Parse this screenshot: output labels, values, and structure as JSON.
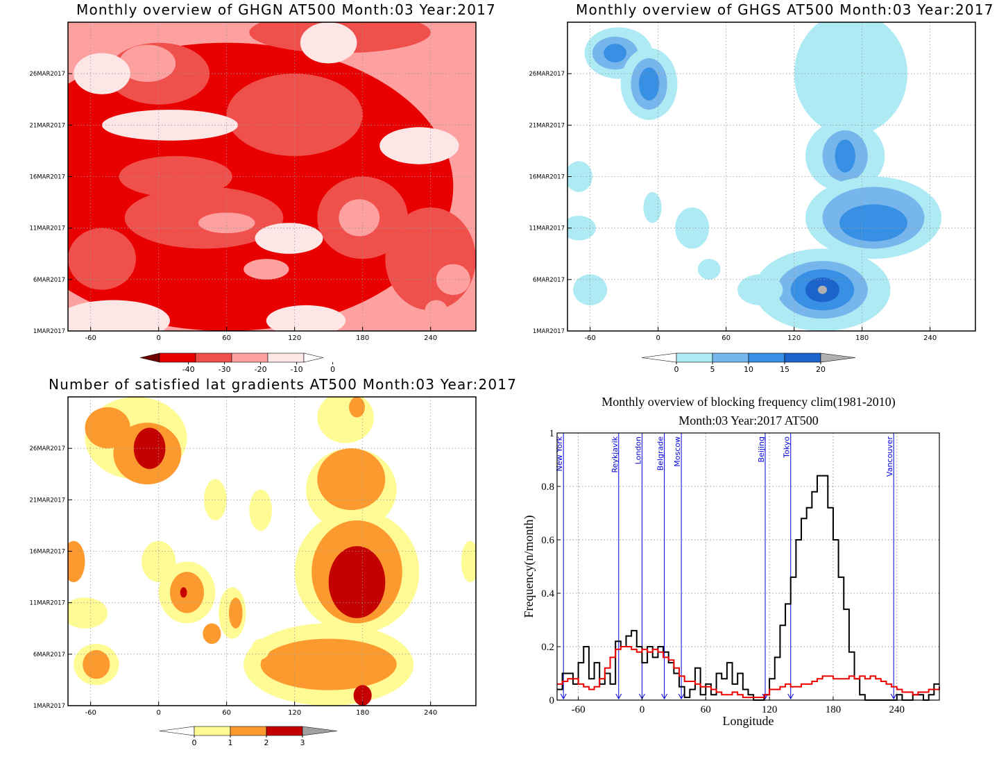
{
  "colors": {
    "red": [
      "#6e0000",
      "#e80000",
      "#f0504c",
      "#fca0a0",
      "#fde6e6"
    ],
    "blue": [
      "#aeeaf4",
      "#76b6ec",
      "#3890e4",
      "#1c64cc",
      "#b0b0b0"
    ],
    "yellow_orange": [
      "#fffb94",
      "#fc9a30",
      "#c40000",
      "#a0a0a0"
    ],
    "line_black": "#000000",
    "line_red": "#ee0000",
    "city_line": "#0000dd"
  },
  "chart_data": [
    {
      "type": "heatmap",
      "title": "Monthly overview of GHGN AT500 Month:03 Year:2017",
      "x_ticks": [
        "-60",
        "0",
        "60",
        "120",
        "180",
        "240"
      ],
      "x_tick_values": [
        -60,
        0,
        60,
        120,
        180,
        240
      ],
      "xlim": [
        -80,
        280
      ],
      "y_ticks": [
        "1MAR2017",
        "6MAR2017",
        "11MAR2017",
        "16MAR2017",
        "21MAR2017",
        "26MAR2017"
      ],
      "y_tick_values": [
        1,
        6,
        11,
        16,
        21,
        26
      ],
      "ylim": [
        1,
        31
      ],
      "colorbar": {
        "labels": [
          "-40",
          "-30",
          "-20",
          "-10",
          "0"
        ]
      },
      "blobs": [
        {
          "x": 60,
          "y": 15,
          "rx": 200,
          "ry": 14,
          "level": 3
        },
        {
          "x": 0,
          "y": 26,
          "rx": 45,
          "ry": 3,
          "level": 2
        },
        {
          "x": -10,
          "y": 27,
          "rx": 25,
          "ry": 1.8,
          "level": 1
        },
        {
          "x": 120,
          "y": 22,
          "rx": 60,
          "ry": 4,
          "level": 2
        },
        {
          "x": 180,
          "y": 12,
          "rx": 40,
          "ry": 4,
          "level": 2
        },
        {
          "x": 177,
          "y": 12,
          "rx": 18,
          "ry": 1.8,
          "level": 1
        },
        {
          "x": 40,
          "y": 12,
          "rx": 70,
          "ry": 3,
          "level": 2
        },
        {
          "x": 60,
          "y": 11.5,
          "rx": 25,
          "ry": 1,
          "level": 1
        },
        {
          "x": 15,
          "y": 16,
          "rx": 50,
          "ry": 2,
          "level": 2
        },
        {
          "x": 240,
          "y": 8,
          "rx": 40,
          "ry": 5,
          "level": 2
        },
        {
          "x": 95,
          "y": 7,
          "rx": 20,
          "ry": 1,
          "level": 1
        },
        {
          "x": 260,
          "y": 6,
          "rx": 15,
          "ry": 1.5,
          "level": 1
        },
        {
          "x": -50,
          "y": 8,
          "rx": 30,
          "ry": 3,
          "level": 2
        },
        {
          "x": 160,
          "y": 30,
          "rx": 80,
          "ry": 2,
          "level": 2
        },
        {
          "x": 245,
          "y": 3,
          "rx": 10,
          "ry": 1,
          "level": 1
        },
        {
          "x": -50,
          "y": 26,
          "rx": 25,
          "ry": 2,
          "level": 4
        },
        {
          "x": 150,
          "y": 29,
          "rx": 25,
          "ry": 2,
          "level": 4
        },
        {
          "x": -40,
          "y": 2,
          "rx": 50,
          "ry": 2,
          "level": 4
        },
        {
          "x": 115,
          "y": 10,
          "rx": 30,
          "ry": 1.5,
          "level": 4
        },
        {
          "x": 10,
          "y": 21,
          "rx": 60,
          "ry": 1.5,
          "level": 4
        },
        {
          "x": 230,
          "y": 19,
          "rx": 35,
          "ry": 1.8,
          "level": 4
        },
        {
          "x": 130,
          "y": 2,
          "rx": 35,
          "ry": 1.5,
          "level": 4
        }
      ]
    },
    {
      "type": "heatmap",
      "title": "Monthly overview of GHGS AT500 Month:03 Year:2017",
      "x_ticks": [
        "-60",
        "0",
        "60",
        "120",
        "180",
        "240"
      ],
      "x_tick_values": [
        -60,
        0,
        60,
        120,
        180,
        240
      ],
      "xlim": [
        -80,
        280
      ],
      "y_ticks": [
        "1MAR2017",
        "6MAR2017",
        "11MAR2017",
        "16MAR2017",
        "21MAR2017",
        "26MAR2017"
      ],
      "y_tick_values": [
        1,
        6,
        11,
        16,
        21,
        26
      ],
      "ylim": [
        1,
        31
      ],
      "colorbar": {
        "labels": [
          "0",
          "5",
          "10",
          "15",
          "20"
        ]
      },
      "blobs": [
        {
          "x": -35,
          "y": 28,
          "rx": 30,
          "ry": 2.5,
          "level": 0
        },
        {
          "x": -38,
          "y": 28,
          "rx": 20,
          "ry": 1.6,
          "level": 1
        },
        {
          "x": -38,
          "y": 28,
          "rx": 10,
          "ry": 0.9,
          "level": 2
        },
        {
          "x": -8,
          "y": 25,
          "rx": 25,
          "ry": 3.5,
          "level": 0
        },
        {
          "x": -8,
          "y": 25,
          "rx": 16,
          "ry": 2.5,
          "level": 1
        },
        {
          "x": -8,
          "y": 25,
          "rx": 9,
          "ry": 1.6,
          "level": 2
        },
        {
          "x": 170,
          "y": 26,
          "rx": 50,
          "ry": 6,
          "level": 0
        },
        {
          "x": 165,
          "y": 18,
          "rx": 35,
          "ry": 3.5,
          "level": 0
        },
        {
          "x": 165,
          "y": 18,
          "rx": 20,
          "ry": 2.5,
          "level": 1
        },
        {
          "x": 165,
          "y": 18,
          "rx": 9,
          "ry": 1.6,
          "level": 2
        },
        {
          "x": 190,
          "y": 12,
          "rx": 60,
          "ry": 4,
          "level": 0
        },
        {
          "x": 190,
          "y": 12,
          "rx": 45,
          "ry": 3,
          "level": 1
        },
        {
          "x": 190,
          "y": 11.5,
          "rx": 30,
          "ry": 1.8,
          "level": 2
        },
        {
          "x": 145,
          "y": 5,
          "rx": 60,
          "ry": 4,
          "level": 0
        },
        {
          "x": 145,
          "y": 5,
          "rx": 40,
          "ry": 2.8,
          "level": 1
        },
        {
          "x": 145,
          "y": 5,
          "rx": 28,
          "ry": 2,
          "level": 2
        },
        {
          "x": 145,
          "y": 5,
          "rx": 15,
          "ry": 1.2,
          "level": 3
        },
        {
          "x": 145,
          "y": 5,
          "rx": 4,
          "ry": 0.4,
          "level": 4
        },
        {
          "x": -70,
          "y": 16,
          "rx": 12,
          "ry": 1.5,
          "level": 0
        },
        {
          "x": -70,
          "y": 11,
          "rx": 15,
          "ry": 1.2,
          "level": 0
        },
        {
          "x": -60,
          "y": 5,
          "rx": 15,
          "ry": 1.5,
          "level": 0
        },
        {
          "x": -5,
          "y": 13,
          "rx": 8,
          "ry": 1.5,
          "level": 0
        },
        {
          "x": 30,
          "y": 11,
          "rx": 15,
          "ry": 2,
          "level": 0
        },
        {
          "x": 45,
          "y": 7,
          "rx": 10,
          "ry": 1,
          "level": 0
        },
        {
          "x": 90,
          "y": 5,
          "rx": 20,
          "ry": 1.5,
          "level": 0
        },
        {
          "x": 165,
          "y": 29,
          "rx": 20,
          "ry": 2,
          "level": 0
        }
      ]
    },
    {
      "type": "heatmap",
      "title": "Number of satisfied lat gradients AT500 Month:03 Year:2017",
      "x_ticks": [
        "-60",
        "0",
        "60",
        "120",
        "180",
        "240"
      ],
      "x_tick_values": [
        -60,
        0,
        60,
        120,
        180,
        240
      ],
      "xlim": [
        -80,
        280
      ],
      "y_ticks": [
        "1MAR2017",
        "6MAR2017",
        "11MAR2017",
        "16MAR2017",
        "21MAR2017",
        "26MAR2017"
      ],
      "y_tick_values": [
        1,
        6,
        11,
        16,
        21,
        26
      ],
      "ylim": [
        1,
        31
      ],
      "colorbar": {
        "labels": [
          "0",
          "1",
          "2",
          "3"
        ]
      },
      "blobs": [
        {
          "x": -20,
          "y": 27,
          "rx": 45,
          "ry": 4,
          "level": 0
        },
        {
          "x": -10,
          "y": 25.5,
          "rx": 30,
          "ry": 3,
          "level": 1
        },
        {
          "x": -8,
          "y": 26,
          "rx": 14,
          "ry": 2,
          "level": 2
        },
        {
          "x": -45,
          "y": 28,
          "rx": 20,
          "ry": 2,
          "level": 1
        },
        {
          "x": 170,
          "y": 22,
          "rx": 40,
          "ry": 4,
          "level": 0
        },
        {
          "x": 170,
          "y": 23,
          "rx": 30,
          "ry": 3,
          "level": 1
        },
        {
          "x": 175,
          "y": 14,
          "rx": 55,
          "ry": 6,
          "level": 0
        },
        {
          "x": 175,
          "y": 14,
          "rx": 40,
          "ry": 5,
          "level": 1
        },
        {
          "x": 175,
          "y": 13,
          "rx": 25,
          "ry": 3.5,
          "level": 2
        },
        {
          "x": 150,
          "y": 5,
          "rx": 75,
          "ry": 4,
          "level": 0
        },
        {
          "x": 150,
          "y": 5,
          "rx": 60,
          "ry": 2.5,
          "level": 1
        },
        {
          "x": 180,
          "y": 2,
          "rx": 8,
          "ry": 1,
          "level": 2
        },
        {
          "x": -55,
          "y": 5,
          "rx": 20,
          "ry": 2,
          "level": 0
        },
        {
          "x": -55,
          "y": 5,
          "rx": 12,
          "ry": 1.4,
          "level": 1
        },
        {
          "x": 25,
          "y": 12,
          "rx": 25,
          "ry": 3,
          "level": 0
        },
        {
          "x": 25,
          "y": 12,
          "rx": 15,
          "ry": 2,
          "level": 1
        },
        {
          "x": 22,
          "y": 12,
          "rx": 3,
          "ry": 0.5,
          "level": 2
        },
        {
          "x": -75,
          "y": 15,
          "rx": 10,
          "ry": 2,
          "level": 1
        },
        {
          "x": -65,
          "y": 10,
          "rx": 20,
          "ry": 1.5,
          "level": 0
        },
        {
          "x": 0,
          "y": 15,
          "rx": 15,
          "ry": 2,
          "level": 0
        },
        {
          "x": 65,
          "y": 10,
          "rx": 12,
          "ry": 2.5,
          "level": 0
        },
        {
          "x": 68,
          "y": 10,
          "rx": 6,
          "ry": 1.5,
          "level": 1
        },
        {
          "x": 47,
          "y": 8,
          "rx": 8,
          "ry": 1,
          "level": 1
        },
        {
          "x": 90,
          "y": 6.5,
          "rx": 8,
          "ry": 1,
          "level": 0
        },
        {
          "x": 50,
          "y": 21,
          "rx": 10,
          "ry": 2,
          "level": 0
        },
        {
          "x": 90,
          "y": 20,
          "rx": 10,
          "ry": 2,
          "level": 0
        },
        {
          "x": 275,
          "y": 15,
          "rx": 8,
          "ry": 2,
          "level": 0
        },
        {
          "x": 165,
          "y": 29,
          "rx": 25,
          "ry": 2.5,
          "level": 0
        },
        {
          "x": 175,
          "y": 30,
          "rx": 7,
          "ry": 1,
          "level": 1
        }
      ]
    },
    {
      "type": "line",
      "title": "Monthly overview of blocking frequency clim(1981-2010)",
      "subtitle": "Month:03 Year:2017  AT500",
      "xlabel": "Longitude",
      "ylabel": "Frequency(n/month)",
      "xlim": [
        -80,
        280
      ],
      "ylim": [
        0,
        1
      ],
      "x_ticks": [
        "-60",
        "0",
        "60",
        "120",
        "180",
        "240"
      ],
      "x_tick_values": [
        -60,
        0,
        60,
        120,
        180,
        240
      ],
      "y_ticks": [
        "0",
        "0.2",
        "0.4",
        "0.6",
        "0.8",
        "1"
      ],
      "y_tick_values": [
        0,
        0.2,
        0.4,
        0.6,
        0.8,
        1
      ],
      "grid": true,
      "cities": [
        {
          "name": "New York",
          "lon": -74
        },
        {
          "name": "Reykjavik",
          "lon": -22
        },
        {
          "name": "London",
          "lon": 0
        },
        {
          "name": "Belgrade",
          "lon": 21
        },
        {
          "name": "Moscow",
          "lon": 37
        },
        {
          "name": "Beijing",
          "lon": 116
        },
        {
          "name": "Tokyo",
          "lon": 140
        },
        {
          "name": "Vancouver",
          "lon": 237
        }
      ],
      "series": [
        {
          "color": "#000000",
          "x": [
            -80,
            -75,
            -70,
            -65,
            -60,
            -55,
            -50,
            -45,
            -40,
            -35,
            -30,
            -25,
            -20,
            -15,
            -10,
            -5,
            0,
            5,
            10,
            15,
            20,
            25,
            30,
            35,
            40,
            45,
            50,
            55,
            60,
            65,
            70,
            75,
            80,
            85,
            90,
            95,
            100,
            105,
            110,
            115,
            120,
            125,
            130,
            135,
            140,
            145,
            150,
            155,
            160,
            165,
            170,
            175,
            180,
            185,
            190,
            195,
            200,
            205,
            210,
            215,
            220,
            225,
            230,
            235,
            240,
            245,
            250,
            255,
            260,
            265,
            270,
            275,
            280
          ],
          "values": [
            0.04,
            0.1,
            0.1,
            0.06,
            0.14,
            0.2,
            0.08,
            0.14,
            0.06,
            0.1,
            0.06,
            0.22,
            0.2,
            0.24,
            0.26,
            0.2,
            0.14,
            0.2,
            0.16,
            0.2,
            0.18,
            0.14,
            0.1,
            0.05,
            0.01,
            0.04,
            0.12,
            0.02,
            0.06,
            0.02,
            0.1,
            0.08,
            0.14,
            0.06,
            0.1,
            0.04,
            0.02,
            0.0,
            0.0,
            0.02,
            0.08,
            0.16,
            0.28,
            0.36,
            0.46,
            0.6,
            0.68,
            0.72,
            0.78,
            0.84,
            0.84,
            0.72,
            0.6,
            0.46,
            0.34,
            0.18,
            0.08,
            0.02,
            0.0,
            0.0,
            0.0,
            0.0,
            0.0,
            0.0,
            0.02,
            0.0,
            0.0,
            0.02,
            0.02,
            0.0,
            0.02,
            0.06,
            0.06
          ]
        },
        {
          "color": "#ee0000",
          "x": [
            -80,
            -75,
            -70,
            -65,
            -60,
            -55,
            -50,
            -45,
            -40,
            -35,
            -30,
            -25,
            -20,
            -15,
            -10,
            -5,
            0,
            5,
            10,
            15,
            20,
            25,
            30,
            35,
            40,
            45,
            50,
            55,
            60,
            65,
            70,
            75,
            80,
            85,
            90,
            95,
            100,
            105,
            110,
            115,
            120,
            125,
            130,
            135,
            140,
            145,
            150,
            155,
            160,
            165,
            170,
            175,
            180,
            185,
            190,
            195,
            200,
            205,
            210,
            215,
            220,
            225,
            230,
            235,
            240,
            245,
            250,
            255,
            260,
            265,
            270,
            275,
            280
          ],
          "values": [
            0.06,
            0.07,
            0.08,
            0.08,
            0.06,
            0.05,
            0.04,
            0.05,
            0.08,
            0.12,
            0.16,
            0.19,
            0.2,
            0.2,
            0.19,
            0.18,
            0.19,
            0.18,
            0.19,
            0.18,
            0.16,
            0.15,
            0.12,
            0.09,
            0.07,
            0.07,
            0.06,
            0.05,
            0.05,
            0.04,
            0.03,
            0.02,
            0.02,
            0.03,
            0.02,
            0.01,
            0.01,
            0.01,
            0.01,
            0.02,
            0.04,
            0.04,
            0.05,
            0.06,
            0.05,
            0.05,
            0.06,
            0.06,
            0.07,
            0.08,
            0.09,
            0.09,
            0.08,
            0.08,
            0.08,
            0.09,
            0.08,
            0.09,
            0.08,
            0.09,
            0.08,
            0.07,
            0.06,
            0.05,
            0.04,
            0.03,
            0.03,
            0.02,
            0.03,
            0.03,
            0.04,
            0.04,
            0.05
          ]
        }
      ]
    }
  ]
}
